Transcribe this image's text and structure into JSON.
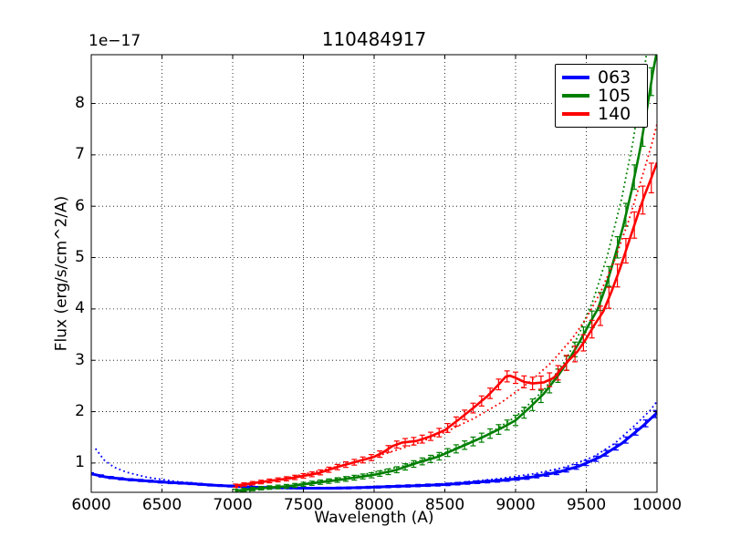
{
  "title": "110484917",
  "axes": {
    "offset_text": "1e−17",
    "xlabel": "Wavelength (A)",
    "ylabel": "Flux (erg/s/cm^2/A)",
    "xlim": [
      6000,
      10000
    ],
    "ylim": [
      0.43,
      8.95
    ],
    "xticks": [
      6000,
      6500,
      7000,
      7500,
      8000,
      8500,
      9000,
      9500,
      10000
    ],
    "yticks": [
      1,
      2,
      3,
      4,
      5,
      6,
      7,
      8
    ],
    "grid": "dotted black"
  },
  "legend": {
    "position": "upper right",
    "items": [
      {
        "label": "063",
        "color": "#0000ff"
      },
      {
        "label": "105",
        "color": "#007f00"
      },
      {
        "label": "140",
        "color": "#ff0000"
      }
    ]
  },
  "chart_data": {
    "type": "line",
    "title": "110484917",
    "xlabel": "Wavelength (A)",
    "ylabel": "Flux (erg/s/cm^2/A)",
    "y_units_note": "flux values are ×1e-17 erg/s/cm^2/A",
    "xlim": [
      6000,
      10000
    ],
    "ylim": [
      0.43,
      8.95
    ],
    "legend_position": "upper right",
    "grid": true,
    "series": [
      {
        "name": "063",
        "color": "#0000ff",
        "style": "solid",
        "width": 3,
        "err_interval": 70,
        "err_anchors": [
          [
            6000,
            0.022
          ],
          [
            7500,
            0.016
          ],
          [
            9000,
            0.028
          ],
          [
            10000,
            0.07
          ]
        ],
        "points": [
          [
            6000,
            0.79
          ],
          [
            6100,
            0.73
          ],
          [
            6250,
            0.68
          ],
          [
            6400,
            0.65
          ],
          [
            6550,
            0.62
          ],
          [
            6700,
            0.6
          ],
          [
            6850,
            0.57
          ],
          [
            7000,
            0.55
          ],
          [
            7150,
            0.53
          ],
          [
            7300,
            0.52
          ],
          [
            7500,
            0.51
          ],
          [
            7700,
            0.51
          ],
          [
            7900,
            0.52
          ],
          [
            8100,
            0.54
          ],
          [
            8300,
            0.56
          ],
          [
            8500,
            0.58
          ],
          [
            8700,
            0.62
          ],
          [
            8900,
            0.66
          ],
          [
            9100,
            0.72
          ],
          [
            9300,
            0.82
          ],
          [
            9450,
            0.94
          ],
          [
            9600,
            1.12
          ],
          [
            9750,
            1.38
          ],
          [
            9900,
            1.72
          ],
          [
            10000,
            1.98
          ]
        ]
      },
      {
        "name": "063-model",
        "color": "#0000ff",
        "style": "dotted",
        "width": 1.8,
        "points": [
          [
            6030,
            1.28
          ],
          [
            6090,
            1.06
          ],
          [
            6160,
            0.92
          ],
          [
            6250,
            0.82
          ],
          [
            6400,
            0.72
          ],
          [
            6600,
            0.64
          ],
          [
            6850,
            0.58
          ],
          [
            7100,
            0.53
          ],
          [
            7400,
            0.5
          ],
          [
            7700,
            0.5
          ],
          [
            8000,
            0.52
          ],
          [
            8300,
            0.56
          ],
          [
            8600,
            0.62
          ],
          [
            8900,
            0.7
          ],
          [
            9150,
            0.8
          ],
          [
            9350,
            0.92
          ],
          [
            9550,
            1.12
          ],
          [
            9700,
            1.38
          ],
          [
            9850,
            1.75
          ],
          [
            9950,
            2.02
          ],
          [
            10000,
            2.2
          ]
        ]
      },
      {
        "name": "105",
        "color": "#007f00",
        "style": "solid",
        "width": 2.6,
        "err_interval": 60,
        "err_anchors": [
          [
            7050,
            0.03
          ],
          [
            8000,
            0.05
          ],
          [
            9000,
            0.1
          ],
          [
            9500,
            0.15
          ],
          [
            10000,
            0.28
          ]
        ],
        "points": [
          [
            7020,
            0.46
          ],
          [
            7200,
            0.51
          ],
          [
            7400,
            0.55
          ],
          [
            7600,
            0.62
          ],
          [
            7800,
            0.69
          ],
          [
            8000,
            0.77
          ],
          [
            8150,
            0.86
          ],
          [
            8300,
            1.0
          ],
          [
            8450,
            1.12
          ],
          [
            8600,
            1.3
          ],
          [
            8750,
            1.48
          ],
          [
            8900,
            1.68
          ],
          [
            9000,
            1.83
          ],
          [
            9100,
            2.08
          ],
          [
            9200,
            2.35
          ],
          [
            9300,
            2.7
          ],
          [
            9374,
            3.0
          ],
          [
            9450,
            3.35
          ],
          [
            9520,
            3.7
          ],
          [
            9581,
            4.0
          ],
          [
            9640,
            4.45
          ],
          [
            9700,
            5.0
          ],
          [
            9760,
            5.6
          ],
          [
            9820,
            6.3
          ],
          [
            9880,
            7.1
          ],
          [
            9930,
            7.9
          ],
          [
            9970,
            8.6
          ],
          [
            9995,
            8.95
          ]
        ]
      },
      {
        "name": "105-model",
        "color": "#007f00",
        "style": "dotted",
        "width": 1.8,
        "points": [
          [
            7020,
            0.42
          ],
          [
            7300,
            0.52
          ],
          [
            7600,
            0.64
          ],
          [
            7900,
            0.76
          ],
          [
            8200,
            0.94
          ],
          [
            8500,
            1.2
          ],
          [
            8800,
            1.55
          ],
          [
            9000,
            1.9
          ],
          [
            9200,
            2.42
          ],
          [
            9350,
            2.98
          ],
          [
            9450,
            3.52
          ],
          [
            9550,
            4.18
          ],
          [
            9650,
            5.05
          ],
          [
            9750,
            6.15
          ],
          [
            9830,
            7.25
          ],
          [
            9890,
            8.3
          ],
          [
            9925,
            8.95
          ]
        ]
      },
      {
        "name": "140",
        "color": "#ff0000",
        "style": "solid",
        "width": 2.6,
        "err_interval": 60,
        "err_anchors": [
          [
            7050,
            0.03
          ],
          [
            8000,
            0.06
          ],
          [
            9000,
            0.11
          ],
          [
            9500,
            0.16
          ],
          [
            10000,
            0.3
          ]
        ],
        "points": [
          [
            7020,
            0.56
          ],
          [
            7200,
            0.63
          ],
          [
            7400,
            0.7
          ],
          [
            7600,
            0.8
          ],
          [
            7750,
            0.93
          ],
          [
            7840,
            1.0
          ],
          [
            8000,
            1.12
          ],
          [
            8060,
            1.2
          ],
          [
            8130,
            1.33
          ],
          [
            8200,
            1.4
          ],
          [
            8300,
            1.43
          ],
          [
            8400,
            1.52
          ],
          [
            8500,
            1.64
          ],
          [
            8600,
            1.85
          ],
          [
            8700,
            2.07
          ],
          [
            8800,
            2.3
          ],
          [
            8870,
            2.5
          ],
          [
            8930,
            2.68
          ],
          [
            8960,
            2.7
          ],
          [
            9000,
            2.66
          ],
          [
            9060,
            2.58
          ],
          [
            9120,
            2.55
          ],
          [
            9200,
            2.57
          ],
          [
            9270,
            2.66
          ],
          [
            9360,
            2.95
          ],
          [
            9440,
            3.18
          ],
          [
            9500,
            3.42
          ],
          [
            9560,
            3.7
          ],
          [
            9620,
            3.95
          ],
          [
            9680,
            4.35
          ],
          [
            9740,
            4.8
          ],
          [
            9800,
            5.3
          ],
          [
            9860,
            5.8
          ],
          [
            9910,
            6.2
          ],
          [
            9960,
            6.55
          ],
          [
            10000,
            6.85
          ]
        ]
      },
      {
        "name": "140-model",
        "color": "#ff0000",
        "style": "dotted",
        "width": 1.8,
        "points": [
          [
            7020,
            0.52
          ],
          [
            7300,
            0.66
          ],
          [
            7600,
            0.84
          ],
          [
            7900,
            1.04
          ],
          [
            8100,
            1.2
          ],
          [
            8300,
            1.38
          ],
          [
            8500,
            1.6
          ],
          [
            8700,
            1.86
          ],
          [
            8900,
            2.18
          ],
          [
            9100,
            2.58
          ],
          [
            9250,
            2.95
          ],
          [
            9400,
            3.42
          ],
          [
            9500,
            3.82
          ],
          [
            9600,
            4.32
          ],
          [
            9700,
            4.95
          ],
          [
            9800,
            5.72
          ],
          [
            9900,
            6.62
          ],
          [
            9960,
            7.18
          ],
          [
            10000,
            7.6
          ]
        ]
      }
    ]
  }
}
